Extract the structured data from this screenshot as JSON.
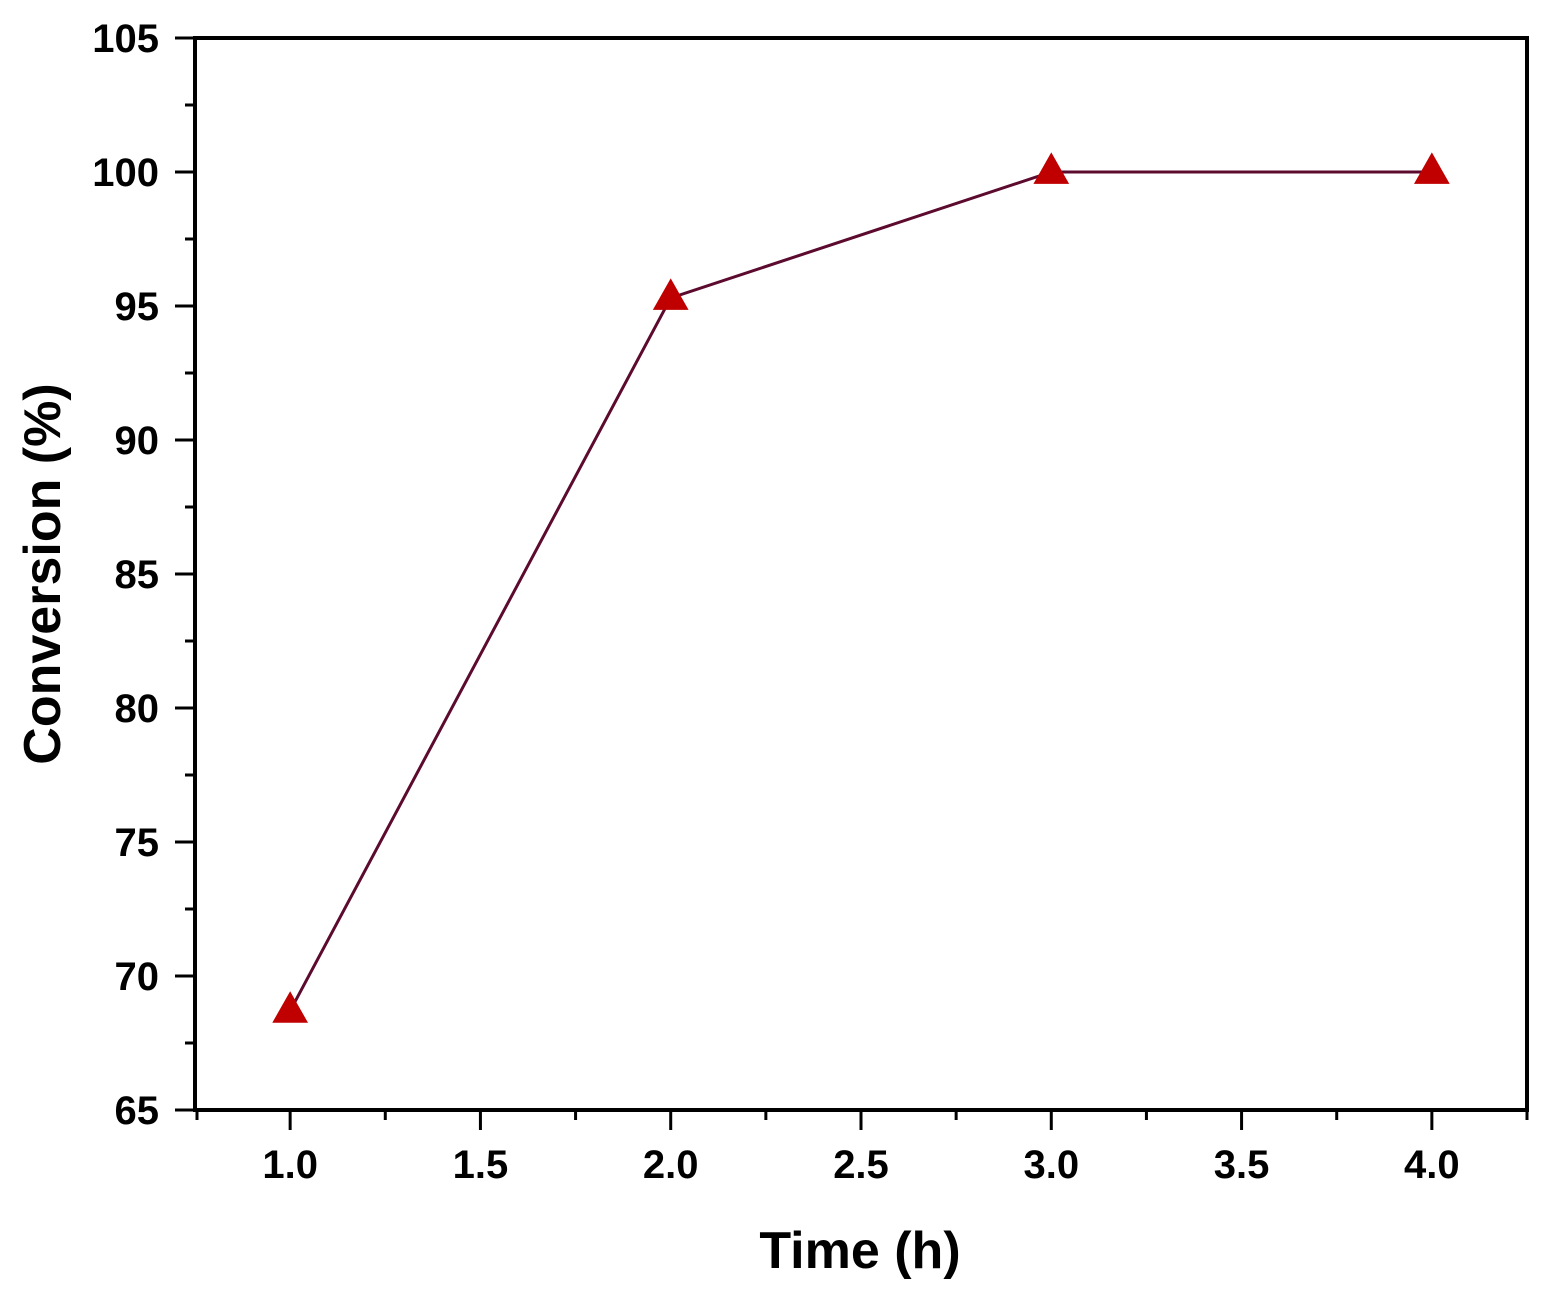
{
  "chart_data": {
    "type": "line",
    "title": "",
    "xlabel": "Time (h)",
    "ylabel": "Conversion (%)",
    "xlim": [
      0.75,
      4.25
    ],
    "ylim": [
      65,
      105
    ],
    "xticks": [
      "1.0",
      "1.5",
      "2.0",
      "2.5",
      "3.0",
      "3.5",
      "4.0"
    ],
    "yticks": [
      "65",
      "70",
      "75",
      "80",
      "85",
      "90",
      "95",
      "100",
      "105"
    ],
    "grid": false,
    "legend": "none",
    "series": [
      {
        "x": [
          1.0,
          2.0,
          3.0,
          4.0
        ],
        "y": [
          68.7,
          95.3,
          100.0,
          100.0
        ],
        "marker": "triangle",
        "marker_color": "#c00000",
        "line_color": "#5c0a2e"
      }
    ]
  }
}
